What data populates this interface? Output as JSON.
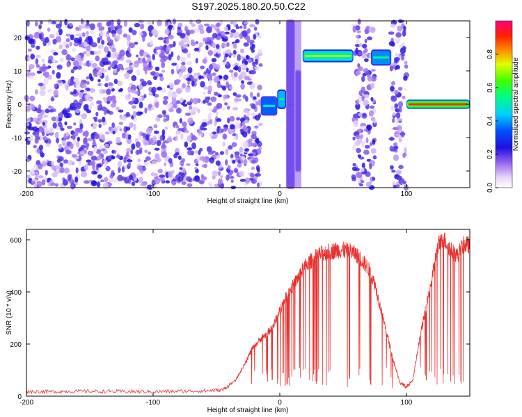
{
  "title": "S197.2025.180.20.50.C22",
  "chart_data": [
    {
      "type": "heatmap",
      "xlabel": "Height of straight line (km)",
      "ylabel": "Frequency (Hz)",
      "xlim": [
        -200,
        150
      ],
      "ylim": [
        -25,
        25
      ],
      "xticks": [
        -200,
        -100,
        0,
        100
      ],
      "yticks": [
        -20,
        -10,
        0,
        10,
        20
      ],
      "colorbar": {
        "label": "Normalized spectral amplitude",
        "range": [
          0,
          1
        ],
        "ticks": [
          0.0,
          0.2,
          0.4,
          0.6,
          0.8
        ]
      },
      "features": [
        {
          "x_range": [
            -200,
            -15
          ],
          "freq": "broadband",
          "amplitude": 0.2
        },
        {
          "x_range": [
            -15,
            -2
          ],
          "freq_hz": [
            -3,
            2
          ],
          "amplitude": 0.5
        },
        {
          "x_range": [
            -2,
            5
          ],
          "freq_hz": [
            -1,
            4
          ],
          "amplitude": 0.6
        },
        {
          "x_range": [
            5,
            12
          ],
          "freq_hz": [
            -25,
            25
          ],
          "amplitude": 0.3
        },
        {
          "x_range": [
            12,
            17
          ],
          "freq_hz": [
            -20,
            10
          ],
          "amplitude": 0.3
        },
        {
          "x_range": [
            18,
            58
          ],
          "freq_hz": [
            13,
            16
          ],
          "amplitude": 0.7
        },
        {
          "x_range": [
            58,
            75
          ],
          "freq": "broadband",
          "amplitude": 0.2
        },
        {
          "x_range": [
            72,
            88
          ],
          "freq_hz": [
            12,
            16
          ],
          "amplitude": 0.55
        },
        {
          "x_range": [
            88,
            100
          ],
          "freq": "broadband",
          "amplitude": 0.2
        },
        {
          "x_range": [
            100,
            150
          ],
          "freq_hz": [
            -1,
            1
          ],
          "amplitude": 0.9
        }
      ]
    },
    {
      "type": "line",
      "xlabel": "Height of straight line (km)",
      "ylabel": "SNR (10 * v/v)",
      "xlim": [
        -200,
        150
      ],
      "ylim": [
        0,
        640
      ],
      "xticks": [
        -200,
        -100,
        0,
        100
      ],
      "yticks": [
        0,
        200,
        400,
        600
      ],
      "series": [
        {
          "color": "#e8302d",
          "x": [
            -200,
            -180,
            -160,
            -140,
            -120,
            -100,
            -80,
            -60,
            -45,
            -35,
            -28,
            -22,
            -15,
            -10,
            -5,
            0,
            5,
            10,
            15,
            20,
            25,
            30,
            35,
            40,
            45,
            50,
            55,
            60,
            65,
            70,
            75,
            80,
            85,
            90,
            95,
            100,
            105,
            110,
            115,
            120,
            125,
            130,
            135,
            140,
            145,
            150
          ],
          "y": [
            18,
            17,
            19,
            18,
            18,
            17,
            19,
            20,
            24,
            60,
            120,
            180,
            220,
            240,
            270,
            330,
            380,
            420,
            460,
            500,
            520,
            540,
            550,
            555,
            560,
            560,
            558,
            545,
            520,
            490,
            430,
            330,
            230,
            130,
            50,
            35,
            60,
            210,
            330,
            450,
            580,
            600,
            560,
            540,
            580,
            580
          ]
        }
      ]
    }
  ]
}
